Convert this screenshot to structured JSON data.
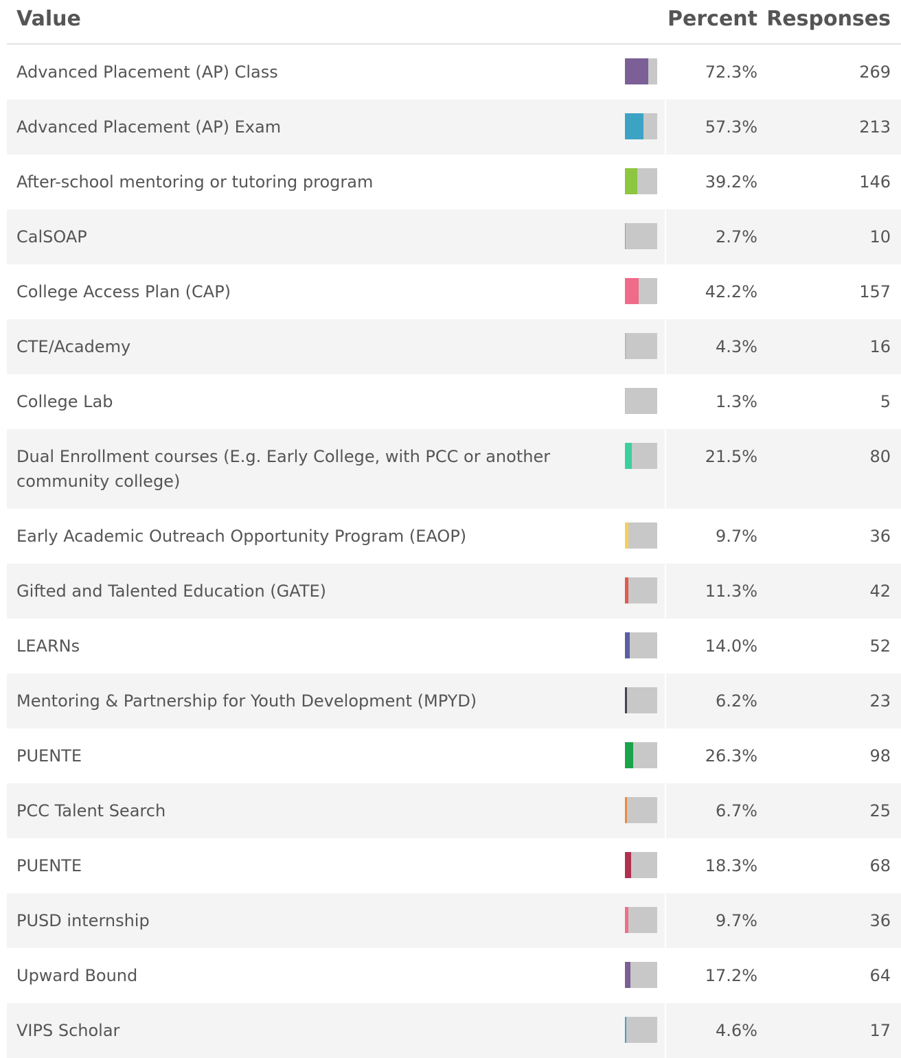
{
  "table": {
    "headers": [
      "Value",
      "Percent",
      "Responses"
    ],
    "rows": [
      {
        "label": "Advanced Placement (AP) Class",
        "percent": 72.3,
        "percent_label": "72.3%",
        "responses": 269,
        "color": "#7b5f96"
      },
      {
        "label": "Advanced Placement (AP) Exam",
        "percent": 57.3,
        "percent_label": "57.3%",
        "responses": 213,
        "color": "#3ca3c5"
      },
      {
        "label": "After-school mentoring or tutoring program",
        "percent": 39.2,
        "percent_label": "39.2%",
        "responses": 146,
        "color": "#8dc63f"
      },
      {
        "label": "CalSOAP",
        "percent": 2.7,
        "percent_label": "2.7%",
        "responses": 10,
        "color": "#9a9a9a"
      },
      {
        "label": "College Access Plan (CAP)",
        "percent": 42.2,
        "percent_label": "42.2%",
        "responses": 157,
        "color": "#f06a8a"
      },
      {
        "label": "CTE/Academy",
        "percent": 4.3,
        "percent_label": "4.3%",
        "responses": 16,
        "color": "#b8b8b8"
      },
      {
        "label": "College Lab",
        "percent": 1.3,
        "percent_label": "1.3%",
        "responses": 5,
        "color": "#c0c0c0"
      },
      {
        "label": "Dual Enrollment courses (E.g. Early College, with PCC or another community college)",
        "percent": 21.5,
        "percent_label": "21.5%",
        "responses": 80,
        "color": "#3ccf9e"
      },
      {
        "label": "Early Academic Outreach Opportunity Program (EAOP)",
        "percent": 9.7,
        "percent_label": "9.7%",
        "responses": 36,
        "color": "#f8cf57"
      },
      {
        "label": "Gifted and Talented Education (GATE)",
        "percent": 11.3,
        "percent_label": "11.3%",
        "responses": 42,
        "color": "#e05a4f"
      },
      {
        "label": "LEARNs",
        "percent": 14.0,
        "percent_label": "14.0%",
        "responses": 52,
        "color": "#5c5ea3"
      },
      {
        "label": "Mentoring & Partnership for Youth Development (MPYD)",
        "percent": 6.2,
        "percent_label": "6.2%",
        "responses": 23,
        "color": "#444455"
      },
      {
        "label": "PUENTE",
        "percent": 26.3,
        "percent_label": "26.3%",
        "responses": 98,
        "color": "#1aa34a"
      },
      {
        "label": "PCC Talent Search",
        "percent": 6.7,
        "percent_label": "6.7%",
        "responses": 25,
        "color": "#e88a45"
      },
      {
        "label": "PUENTE",
        "percent": 18.3,
        "percent_label": "18.3%",
        "responses": 68,
        "color": "#b03050"
      },
      {
        "label": "PUSD internship",
        "percent": 9.7,
        "percent_label": "9.7%",
        "responses": 36,
        "color": "#ef6f8a"
      },
      {
        "label": "Upward Bound",
        "percent": 17.2,
        "percent_label": "17.2%",
        "responses": 64,
        "color": "#7b5f96"
      },
      {
        "label": "VIPS Scholar",
        "percent": 4.6,
        "percent_label": "4.6%",
        "responses": 17,
        "color": "#3ca3c5"
      }
    ]
  }
}
